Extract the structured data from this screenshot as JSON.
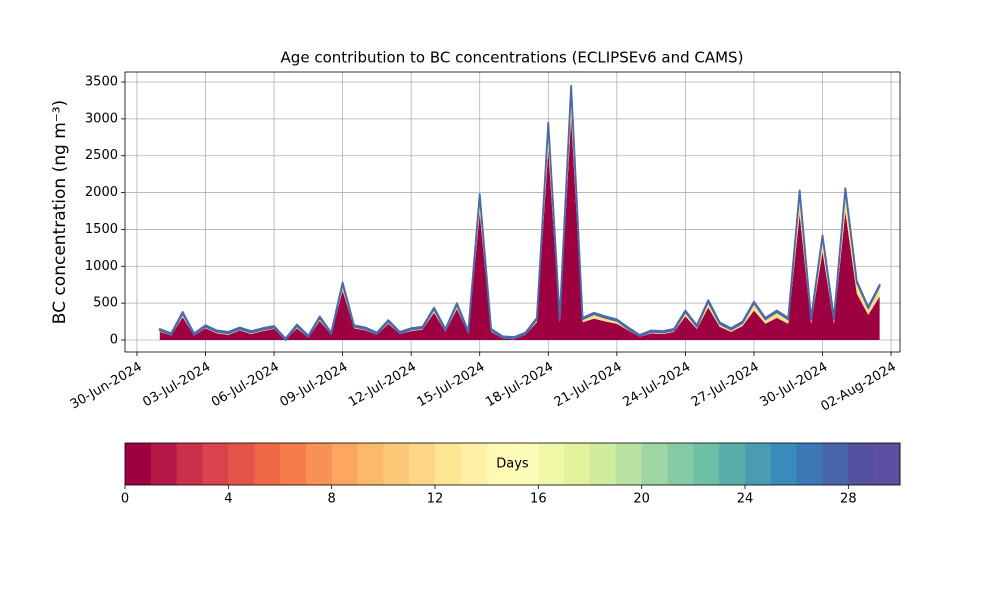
{
  "chart_data": {
    "type": "stacked_area",
    "title": "Age contribution to BC concentrations (ECLIPSEv6 and CAMS)",
    "y_label": "BC concentration (ng m⁻³)",
    "x": [
      "2024-07-01T00:00",
      "2024-07-01T12:00",
      "2024-07-02T00:00",
      "2024-07-02T12:00",
      "2024-07-03T00:00",
      "2024-07-03T12:00",
      "2024-07-04T00:00",
      "2024-07-04T12:00",
      "2024-07-05T00:00",
      "2024-07-05T12:00",
      "2024-07-06T00:00",
      "2024-07-06T12:00",
      "2024-07-07T00:00",
      "2024-07-07T12:00",
      "2024-07-08T00:00",
      "2024-07-08T12:00",
      "2024-07-09T00:00",
      "2024-07-09T12:00",
      "2024-07-10T00:00",
      "2024-07-10T12:00",
      "2024-07-11T00:00",
      "2024-07-11T12:00",
      "2024-07-12T00:00",
      "2024-07-12T12:00",
      "2024-07-13T00:00",
      "2024-07-13T12:00",
      "2024-07-14T00:00",
      "2024-07-14T12:00",
      "2024-07-15T00:00",
      "2024-07-15T12:00",
      "2024-07-16T00:00",
      "2024-07-16T12:00",
      "2024-07-17T00:00",
      "2024-07-17T12:00",
      "2024-07-18T00:00",
      "2024-07-18T12:00",
      "2024-07-19T00:00",
      "2024-07-19T12:00",
      "2024-07-20T00:00",
      "2024-07-20T12:00",
      "2024-07-21T00:00",
      "2024-07-21T12:00",
      "2024-07-22T00:00",
      "2024-07-22T12:00",
      "2024-07-23T00:00",
      "2024-07-23T12:00",
      "2024-07-24T00:00",
      "2024-07-24T12:00",
      "2024-07-25T00:00",
      "2024-07-25T12:00",
      "2024-07-26T00:00",
      "2024-07-26T12:00",
      "2024-07-27T00:00",
      "2024-07-27T12:00",
      "2024-07-28T00:00",
      "2024-07-28T12:00",
      "2024-07-29T00:00",
      "2024-07-29T12:00",
      "2024-07-30T00:00",
      "2024-07-30T12:00",
      "2024-07-31T00:00",
      "2024-07-31T12:00",
      "2024-08-01T00:00",
      "2024-08-01T12:00"
    ],
    "series": [
      {
        "color": "#9e0142",
        "values": [
          110,
          60,
          310,
          60,
          160,
          90,
          70,
          130,
          80,
          120,
          150,
          0,
          160,
          30,
          260,
          70,
          670,
          160,
          130,
          70,
          220,
          80,
          120,
          140,
          370,
          110,
          420,
          90,
          1720,
          110,
          20,
          10,
          70,
          240,
          2580,
          240,
          3020,
          240,
          290,
          250,
          220,
          130,
          40,
          90,
          80,
          110,
          320,
          150,
          440,
          180,
          110,
          190,
          400,
          220,
          300,
          220,
          1710,
          220,
          1200,
          220,
          1740,
          630,
          340,
          590
        ]
      },
      {
        "color": "#fee08b",
        "values": [
          20,
          10,
          50,
          10,
          20,
          20,
          20,
          20,
          20,
          20,
          20,
          0,
          30,
          10,
          40,
          10,
          90,
          20,
          20,
          10,
          30,
          10,
          20,
          20,
          50,
          20,
          60,
          10,
          240,
          20,
          10,
          10,
          10,
          40,
          350,
          40,
          410,
          40,
          60,
          50,
          40,
          20,
          10,
          20,
          20,
          20,
          60,
          30,
          80,
          40,
          30,
          40,
          100,
          60,
          80,
          60,
          300,
          60,
          200,
          60,
          300,
          150,
          90,
          140
        ]
      },
      {
        "color": "#4a6aa8",
        "values": [
          20,
          20,
          20,
          20,
          20,
          20,
          20,
          20,
          20,
          20,
          20,
          20,
          20,
          20,
          20,
          20,
          20,
          20,
          20,
          20,
          20,
          20,
          20,
          20,
          20,
          20,
          20,
          20,
          20,
          20,
          20,
          20,
          20,
          20,
          20,
          20,
          20,
          20,
          20,
          20,
          20,
          20,
          20,
          20,
          20,
          20,
          20,
          20,
          20,
          20,
          20,
          20,
          20,
          20,
          20,
          20,
          20,
          20,
          20,
          20,
          20,
          20,
          20,
          20
        ]
      }
    ],
    "xlim": [
      "2024-06-29T11:28",
      "2024-08-02T09:23"
    ],
    "xticks": [
      {
        "value": "2024-06-30",
        "label": "30-Jun-2024"
      },
      {
        "value": "2024-07-03",
        "label": "03-Jul-2024"
      },
      {
        "value": "2024-07-06",
        "label": "06-Jul-2024"
      },
      {
        "value": "2024-07-09",
        "label": "09-Jul-2024"
      },
      {
        "value": "2024-07-12",
        "label": "12-Jul-2024"
      },
      {
        "value": "2024-07-15",
        "label": "15-Jul-2024"
      },
      {
        "value": "2024-07-18",
        "label": "18-Jul-2024"
      },
      {
        "value": "2024-07-21",
        "label": "21-Jul-2024"
      },
      {
        "value": "2024-07-24",
        "label": "24-Jul-2024"
      },
      {
        "value": "2024-07-27",
        "label": "27-Jul-2024"
      },
      {
        "value": "2024-07-30",
        "label": "30-Jul-2024"
      },
      {
        "value": "2024-08-02",
        "label": "02-Aug-2024"
      }
    ],
    "ylim": [
      -163,
      3636
    ],
    "yticks": [
      0,
      500,
      1000,
      1500,
      2000,
      2500,
      3000,
      3500
    ],
    "grid": true,
    "colorbar": {
      "label": "Days",
      "lim": [
        0,
        30
      ],
      "ticks": [
        0,
        4,
        8,
        12,
        16,
        20,
        24,
        28
      ],
      "colors": [
        "#9e0142",
        "#b41947",
        "#c9304b",
        "#d9444d",
        "#e45549",
        "#ef6645",
        "#f67d4a",
        "#f99155",
        "#fca661",
        "#fdb96b",
        "#fdc877",
        "#fed685",
        "#fee593",
        "#fff0a6",
        "#fff9b6",
        "#fbfdb9",
        "#f0f9a8",
        "#e2f39b",
        "#cfeb9c",
        "#b8e1a2",
        "#9ed6a4",
        "#84cba5",
        "#6dc0a5",
        "#5aaeaa",
        "#4a9cb2",
        "#3a8bbb",
        "#3e77b5",
        "#4864ab",
        "#5452a0",
        "#5e4fa2"
      ]
    }
  }
}
